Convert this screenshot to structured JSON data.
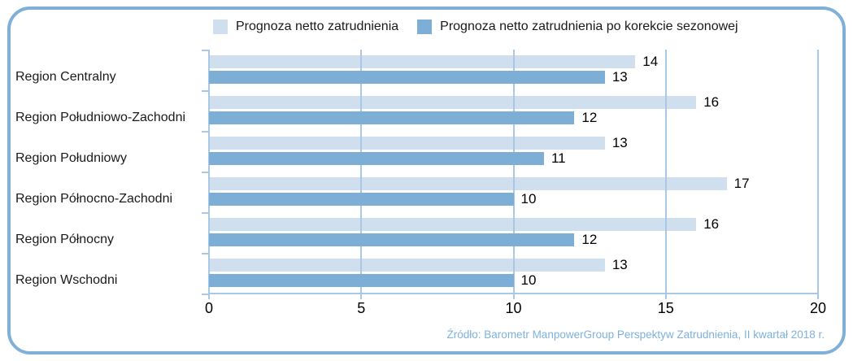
{
  "legend": {
    "position": "top"
  },
  "chart_data": {
    "type": "bar",
    "orientation": "horizontal",
    "categories": [
      "Region Centralny",
      "Region Południowo-Zachodni",
      "Region Południowy",
      "Region Północno-Zachodni",
      "Region Północny",
      "Region Wschodni"
    ],
    "series": [
      {
        "name": "Prognoza netto zatrudnienia",
        "color": "#cfdfee",
        "values": [
          14,
          16,
          13,
          17,
          16,
          13
        ]
      },
      {
        "name": "Prognoza netto zatrudnienia po korekcie sezonowej",
        "color": "#7caed6",
        "values": [
          13,
          12,
          11,
          10,
          12,
          10
        ]
      }
    ],
    "xlim": [
      0,
      20
    ],
    "xticks": [
      0,
      5,
      10,
      15,
      20
    ],
    "grid": true,
    "legend_position": "top",
    "title": "",
    "xlabel": "",
    "ylabel": ""
  },
  "source": "Źródło: Barometr ManpowerGroup Perspektyw Zatrudnienia, II kwartał 2018 r.",
  "colors": {
    "card_border": "#7fb0d9",
    "gridline": "#a9c8e5",
    "source_text": "#7eb1dc",
    "text": "#1a1a1a"
  }
}
